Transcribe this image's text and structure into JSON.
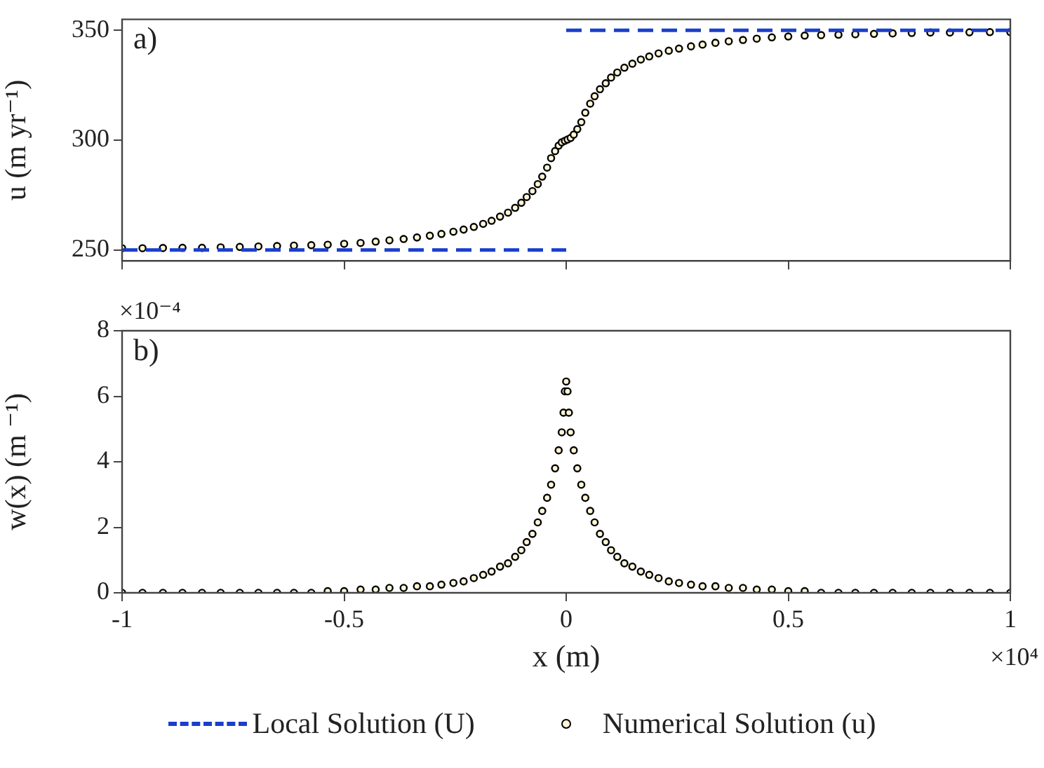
{
  "chart_data": [
    {
      "type": "scatter",
      "ylabel": "u (m yr⁻¹)",
      "annotations": [
        "a)"
      ],
      "xlim": [
        -1,
        1
      ],
      "xticks": [
        -1,
        -0.5,
        0,
        0.5,
        1
      ],
      "ylim": [
        245,
        355
      ],
      "yticks": [
        250,
        300,
        350
      ],
      "tick_labels": "y",
      "legend": "bottom",
      "series": [
        {
          "name": "Local Solution (U)",
          "type": "line",
          "line_style": "dashed",
          "marker": "none",
          "color": "#1a3fcc",
          "x": [
            -1,
            0,
            null,
            0,
            1
          ],
          "values": [
            250,
            250,
            null,
            350,
            350
          ]
        },
        {
          "name": "Numerical Solution (u)",
          "type": "scatter",
          "marker": "circle",
          "color": "#000000",
          "x": [
            -1,
            -0.954,
            -0.908,
            -0.864,
            -0.82,
            -0.778,
            -0.735,
            -0.693,
            -0.651,
            -0.613,
            -0.574,
            -0.537,
            -0.5,
            -0.463,
            -0.429,
            -0.398,
            -0.366,
            -0.336,
            -0.307,
            -0.281,
            -0.254,
            -0.231,
            -0.208,
            -0.187,
            -0.168,
            -0.149,
            -0.131,
            -0.115,
            -0.101,
            -0.089,
            -0.076,
            -0.064,
            -0.054,
            -0.043,
            -0.034,
            -0.025,
            -0.017,
            -0.01,
            -0.003,
            0.003,
            0.01,
            0.017,
            0.025,
            0.034,
            0.043,
            0.054,
            0.064,
            0.076,
            0.089,
            0.101,
            0.115,
            0.131,
            0.149,
            0.168,
            0.187,
            0.208,
            0.231,
            0.254,
            0.281,
            0.307,
            0.336,
            0.366,
            0.398,
            0.429,
            0.463,
            0.5,
            0.537,
            0.574,
            0.613,
            0.651,
            0.693,
            0.735,
            0.778,
            0.82,
            0.864,
            0.908,
            0.954,
            1
          ],
          "values": [
            250.8,
            250.8,
            250.9,
            251.0,
            251.0,
            251.2,
            251.4,
            251.6,
            251.8,
            252.0,
            252.2,
            252.4,
            252.8,
            253.2,
            253.8,
            254.4,
            255.0,
            255.7,
            256.5,
            257.3,
            258.3,
            259.3,
            260.5,
            261.9,
            263.3,
            265.2,
            267.0,
            269.2,
            271.5,
            274.1,
            276.8,
            280.0,
            283.4,
            287.5,
            291.8,
            295.0,
            297.5,
            299.0,
            299.7,
            300.3,
            301.0,
            302.5,
            305.0,
            308.2,
            312.5,
            316.6,
            320.0,
            323.2,
            325.9,
            328.5,
            330.8,
            333.0,
            334.8,
            336.7,
            338.1,
            339.5,
            340.7,
            341.7,
            342.7,
            343.5,
            344.3,
            345.0,
            345.6,
            346.2,
            346.8,
            347.2,
            347.6,
            347.8,
            348.0,
            348.2,
            348.4,
            348.6,
            348.8,
            349.0,
            349.0,
            349.1,
            349.2,
            349.2
          ]
        }
      ]
    },
    {
      "type": "scatter",
      "xlabel": "x (m)",
      "ylabel": "w(x) (m ⁻¹)",
      "annotations": [
        "b)",
        "×10⁻⁴",
        "×10⁴"
      ],
      "xlim": [
        -1,
        1
      ],
      "xticks": [
        -1,
        -0.5,
        0,
        0.5,
        1
      ],
      "ylim": [
        0,
        8
      ],
      "yticks": [
        0,
        2,
        4,
        6,
        8
      ],
      "series": [
        {
          "type": "scatter",
          "marker": "circle",
          "color": "#000000",
          "x": [
            -1,
            -0.954,
            -0.908,
            -0.864,
            -0.82,
            -0.778,
            -0.735,
            -0.693,
            -0.651,
            -0.613,
            -0.574,
            -0.537,
            -0.5,
            -0.463,
            -0.429,
            -0.398,
            -0.366,
            -0.336,
            -0.307,
            -0.281,
            -0.254,
            -0.231,
            -0.208,
            -0.187,
            -0.168,
            -0.149,
            -0.131,
            -0.115,
            -0.101,
            -0.089,
            -0.076,
            -0.064,
            -0.054,
            -0.043,
            -0.034,
            -0.025,
            -0.017,
            -0.01,
            -0.006,
            -0.003,
            0,
            0.003,
            0.006,
            0.01,
            0.017,
            0.025,
            0.034,
            0.043,
            0.054,
            0.064,
            0.076,
            0.089,
            0.101,
            0.115,
            0.131,
            0.149,
            0.168,
            0.187,
            0.208,
            0.231,
            0.254,
            0.281,
            0.307,
            0.336,
            0.366,
            0.398,
            0.429,
            0.463,
            0.5,
            0.537,
            0.574,
            0.613,
            0.651,
            0.693,
            0.735,
            0.778,
            0.82,
            0.864,
            0.908,
            0.954,
            1
          ],
          "values": [
            0,
            0,
            0,
            0,
            0,
            0,
            0,
            0,
            0,
            0,
            0,
            0.05,
            0.05,
            0.1,
            0.1,
            0.15,
            0.15,
            0.2,
            0.2,
            0.25,
            0.3,
            0.35,
            0.45,
            0.55,
            0.65,
            0.8,
            0.9,
            1.1,
            1.3,
            1.55,
            1.8,
            2.15,
            2.5,
            2.9,
            3.3,
            3.8,
            4.35,
            4.9,
            5.5,
            6.15,
            6.45,
            6.15,
            5.5,
            4.9,
            4.35,
            3.8,
            3.3,
            2.9,
            2.5,
            2.15,
            1.8,
            1.55,
            1.3,
            1.1,
            0.9,
            0.8,
            0.65,
            0.55,
            0.45,
            0.35,
            0.3,
            0.25,
            0.2,
            0.2,
            0.15,
            0.15,
            0.1,
            0.1,
            0.05,
            0.05,
            0,
            0,
            0,
            0,
            0,
            0,
            0,
            0,
            0,
            0,
            0
          ]
        }
      ]
    }
  ]
}
